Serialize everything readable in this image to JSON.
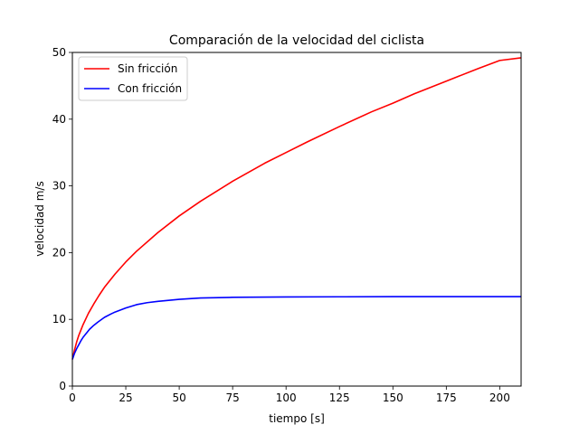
{
  "chart_data": {
    "type": "line",
    "title": "Comparación de la velocidad del ciclista",
    "xlabel": "tiempo [s]",
    "ylabel": "velocidad m/s",
    "xlim": [
      0,
      210
    ],
    "ylim": [
      0,
      50
    ],
    "x_ticks": [
      0,
      25,
      50,
      75,
      100,
      125,
      150,
      175,
      200
    ],
    "y_ticks": [
      0,
      10,
      20,
      30,
      40,
      50
    ],
    "x_tick_labels": [
      "0",
      "25",
      "50",
      "75",
      "100",
      "125",
      "150",
      "175",
      "200"
    ],
    "y_tick_labels": [
      "0",
      "10",
      "20",
      "30",
      "40",
      "50"
    ],
    "grid": false,
    "legend_position": "top-left",
    "series": [
      {
        "name": "Sin fricción",
        "color": "#ff0000",
        "x": [
          0,
          1,
          2,
          3,
          5,
          7.5,
          10,
          12.5,
          15,
          20,
          25,
          30,
          40,
          50,
          60,
          75,
          90,
          100,
          110,
          125,
          140,
          150,
          160,
          175,
          190,
          200,
          210
        ],
        "y": [
          4.0,
          5.4,
          6.6,
          7.6,
          9.2,
          10.9,
          12.3,
          13.6,
          14.8,
          16.8,
          18.6,
          20.2,
          23.0,
          25.5,
          27.7,
          30.7,
          33.4,
          35.0,
          36.6,
          38.9,
          41.1,
          42.4,
          43.8,
          45.7,
          47.6,
          48.8,
          49.2
        ]
      },
      {
        "name": "Con fricción",
        "color": "#0000ff",
        "x": [
          0,
          1,
          2,
          3,
          4,
          5,
          6,
          7,
          8,
          10,
          12,
          15,
          18,
          20,
          25,
          30,
          35,
          40,
          50,
          60,
          75,
          100,
          125,
          150,
          175,
          200,
          210
        ],
        "y": [
          4.0,
          4.9,
          5.6,
          6.2,
          6.8,
          7.3,
          7.7,
          8.1,
          8.5,
          9.1,
          9.6,
          10.3,
          10.8,
          11.1,
          11.7,
          12.2,
          12.5,
          12.7,
          13.0,
          13.2,
          13.3,
          13.35,
          13.38,
          13.4,
          13.4,
          13.4,
          13.4
        ]
      }
    ]
  }
}
